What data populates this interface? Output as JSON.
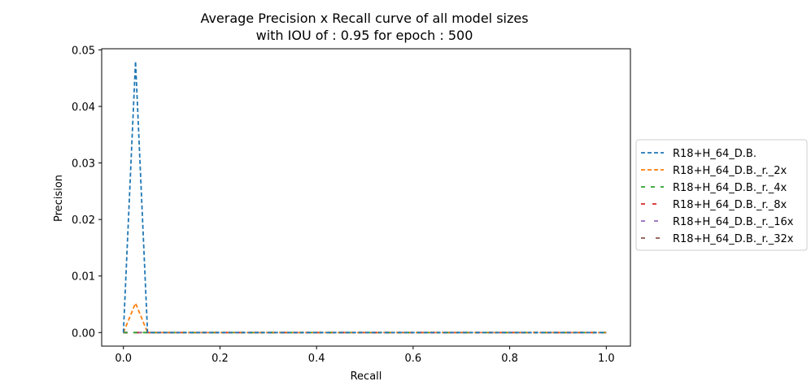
{
  "chart_data": {
    "type": "line",
    "title_line1": "Average Precision x Recall curve of all model sizes",
    "title_line2": "with IOU of : 0.95 for epoch : 500",
    "xlabel": "Recall",
    "ylabel": "Precision",
    "xlim": [
      -0.045,
      1.05
    ],
    "ylim": [
      -0.0024,
      0.0502
    ],
    "xticks": [
      0.0,
      0.2,
      0.4,
      0.6,
      0.8,
      1.0
    ],
    "xtick_labels": [
      "0.0",
      "0.2",
      "0.4",
      "0.6",
      "0.8",
      "1.0"
    ],
    "yticks": [
      0.0,
      0.01,
      0.02,
      0.03,
      0.04,
      0.05
    ],
    "ytick_labels": [
      "0.00",
      "0.01",
      "0.02",
      "0.03",
      "0.04",
      "0.05"
    ],
    "legend_position": "center-right-outside",
    "series": [
      {
        "name": "R18+H_64_D.B.",
        "color": "#1f77b4",
        "dash": "5,3",
        "x": [
          0.0,
          0.025,
          0.05,
          1.0
        ],
        "y": [
          0.0,
          0.048,
          0.0,
          0.0
        ]
      },
      {
        "name": "R18+H_64_D.B._r._2x",
        "color": "#ff7f0e",
        "dash": "5,3",
        "x": [
          0.0,
          0.025,
          0.05,
          1.0
        ],
        "y": [
          0.0,
          0.0052,
          0.0,
          0.0
        ]
      },
      {
        "name": "R18+H_64_D.B._r._4x",
        "color": "#2ca02c",
        "dash": "5,7",
        "x": [
          0.0,
          1.0
        ],
        "y": [
          0.0,
          0.0
        ]
      },
      {
        "name": "R18+H_64_D.B._r._8x",
        "color": "#d62728",
        "dash": "5,9",
        "x": [
          0.0,
          1.0
        ],
        "y": [
          0.0,
          0.0
        ]
      },
      {
        "name": "R18+H_64_D.B._r._16x",
        "color": "#9467bd",
        "dash": "5,11",
        "x": [
          0.0,
          1.0
        ],
        "y": [
          0.0,
          0.0
        ]
      },
      {
        "name": "R18+H_64_D.B._r._32x",
        "color": "#8c564b",
        "dash": "5,13",
        "x": [
          0.0,
          1.0
        ],
        "y": [
          0.0,
          0.0
        ]
      }
    ]
  }
}
